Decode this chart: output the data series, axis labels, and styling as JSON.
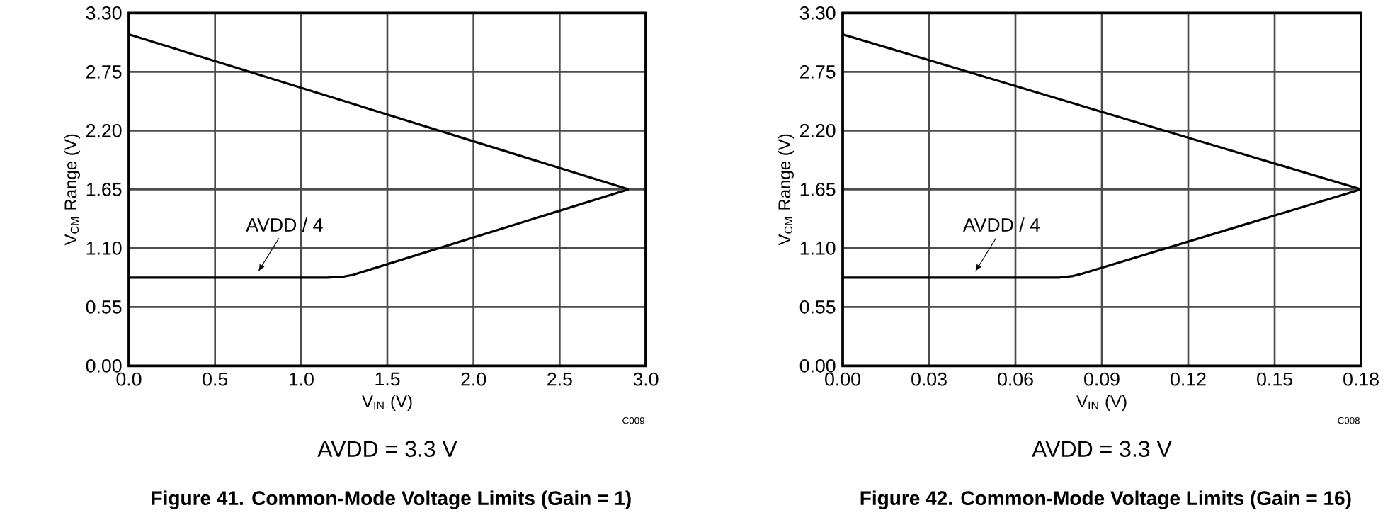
{
  "chart_data": [
    {
      "type": "line",
      "title": "Figure 41. Common-Mode Voltage Limits (Gain = 1)",
      "xlabel": "V$_{IN}$ (V)",
      "ylabel": "V$_{CM}$ Range (V)",
      "series": [
        {
          "color": "#000000",
          "x": [
            0,
            2.9
          ],
          "values": [
            3.1,
            1.65
          ]
        },
        {
          "color": "#000000",
          "x": [
            0,
            1.15,
            1.25,
            1.3,
            2.9
          ],
          "values": [
            0.825,
            0.825,
            0.835,
            0.85,
            1.65
          ]
        }
      ],
      "xlim": [
        0,
        3
      ],
      "ylim": [
        0,
        3.3
      ],
      "xticks": [
        {
          "value": 0,
          "label": "0.0"
        },
        {
          "value": 0.5,
          "label": "0.5"
        },
        {
          "value": 1,
          "label": "1.0"
        },
        {
          "value": 1.5,
          "label": "1.5"
        },
        {
          "value": 2,
          "label": "2.0"
        },
        {
          "value": 2.5,
          "label": "2.5"
        },
        {
          "value": 3,
          "label": "3.0"
        }
      ],
      "yticks": [
        {
          "value": 0,
          "label": "0.00"
        },
        {
          "value": 0.55,
          "label": "0.55"
        },
        {
          "value": 1.1,
          "label": "1.10"
        },
        {
          "value": 1.65,
          "label": "1.65"
        },
        {
          "value": 2.2,
          "label": "2.20"
        },
        {
          "value": 2.75,
          "label": "2.75"
        },
        {
          "value": 3.3,
          "label": "3.30"
        }
      ],
      "grid": true,
      "marker": "none",
      "line_style": "solid",
      "annotations": [
        {
          "text": "AVDD / 4",
          "x": 0.75,
          "y": 0.825
        },
        "C009",
        "AVDD = 3.3 V"
      ]
    },
    {
      "type": "line",
      "title": "Figure 42. Common-Mode Voltage Limits (Gain = 16)",
      "xlabel": "V$_{IN}$ (V)",
      "ylabel": "V$_{CM}$ Range (V)",
      "series": [
        {
          "color": "#000000",
          "x": [
            0,
            0.18
          ],
          "values": [
            3.1,
            1.65
          ]
        },
        {
          "color": "#000000",
          "x": [
            0,
            0.075,
            0.08,
            0.083,
            0.18
          ],
          "values": [
            0.825,
            0.825,
            0.84,
            0.86,
            1.65
          ]
        }
      ],
      "xlim": [
        0,
        0.18
      ],
      "ylim": [
        0,
        3.3
      ],
      "xticks": [
        {
          "value": 0,
          "label": "0.00"
        },
        {
          "value": 0.03,
          "label": "0.03"
        },
        {
          "value": 0.06,
          "label": "0.06"
        },
        {
          "value": 0.09,
          "label": "0.09"
        },
        {
          "value": 0.12,
          "label": "0.12"
        },
        {
          "value": 0.15,
          "label": "0.15"
        },
        {
          "value": 0.18,
          "label": "0.18"
        }
      ],
      "yticks": [
        {
          "value": 0,
          "label": "0.00"
        },
        {
          "value": 0.55,
          "label": "0.55"
        },
        {
          "value": 1.1,
          "label": "1.10"
        },
        {
          "value": 1.65,
          "label": "1.65"
        },
        {
          "value": 2.2,
          "label": "2.20"
        },
        {
          "value": 2.75,
          "label": "2.75"
        },
        {
          "value": 3.3,
          "label": "3.30"
        }
      ],
      "grid": true,
      "marker": "none",
      "line_style": "solid",
      "annotations": [
        {
          "text": "AVDD / 4",
          "x": 0.046,
          "y": 0.825
        },
        "C008",
        "AVDD = 3.3 V"
      ]
    }
  ]
}
